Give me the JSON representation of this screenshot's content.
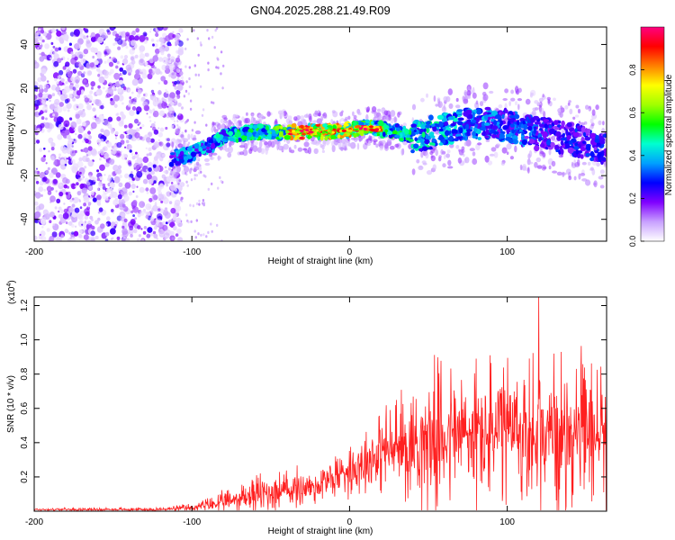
{
  "figure_title": "GN04.2025.288.21.49.R09",
  "chart_data": [
    {
      "type": "heatmap",
      "title": "GN04.2025.288.21.49.R09",
      "xlabel": "Height of straight line (km)",
      "ylabel": "Frequency (Hz)",
      "xlim": [
        -200,
        163
      ],
      "ylim": [
        -50,
        48
      ],
      "xticks": [
        -200,
        -100,
        0,
        100
      ],
      "xtick_labels": [
        "-200",
        "-100",
        "0",
        "100"
      ],
      "yticks": [
        -40,
        -20,
        0,
        20,
        40
      ],
      "ytick_labels": [
        "-40",
        "-20",
        "0",
        "20",
        "40"
      ],
      "colorbar": {
        "label": "Normalized spectral amplitude",
        "range": [
          0,
          1
        ],
        "ticks": [
          0.0,
          0.2,
          0.4,
          0.6,
          0.8
        ],
        "tick_labels": [
          "0.0",
          "0.2",
          "0.4",
          "0.6",
          "0.8"
        ],
        "colors": [
          "#ffffff",
          "#c8a0ff",
          "#8000ff",
          "#0000ff",
          "#00a0ff",
          "#00ffd0",
          "#00ff00",
          "#a0ff00",
          "#ffff00",
          "#ff8000",
          "#ff0000",
          "#ff0080"
        ]
      },
      "noise_region_x": [
        -200,
        -110
      ],
      "ridge": [
        {
          "x": -113,
          "f": -12,
          "a": 0.35
        },
        {
          "x": -100,
          "f": -10,
          "a": 0.45
        },
        {
          "x": -88,
          "f": -6,
          "a": 0.4
        },
        {
          "x": -80,
          "f": -2,
          "a": 0.5
        },
        {
          "x": -60,
          "f": 0,
          "a": 0.55
        },
        {
          "x": -45,
          "f": 0,
          "a": 0.6
        },
        {
          "x": -30,
          "f": 0,
          "a": 0.95
        },
        {
          "x": -15,
          "f": 0,
          "a": 0.8
        },
        {
          "x": 0,
          "f": 1,
          "a": 0.85
        },
        {
          "x": 10,
          "f": 2,
          "a": 0.7
        },
        {
          "x": 25,
          "f": 1,
          "a": 0.55
        },
        {
          "x": 40,
          "f": -2,
          "a": 0.5
        },
        {
          "x": 55,
          "f": 0,
          "a": 0.5
        },
        {
          "x": 70,
          "f": 3,
          "a": 0.45
        },
        {
          "x": 85,
          "f": 4,
          "a": 0.4
        },
        {
          "x": 100,
          "f": 3,
          "a": 0.35
        },
        {
          "x": 115,
          "f": 0,
          "a": 0.35
        },
        {
          "x": 130,
          "f": -2,
          "a": 0.3
        },
        {
          "x": 145,
          "f": -4,
          "a": 0.3
        },
        {
          "x": 163,
          "f": -8,
          "a": 0.3
        }
      ]
    },
    {
      "type": "line",
      "xlabel": "Height of straight line (km)",
      "ylabel": "SNR (10 * v/v)",
      "y_multiplier": "(x10",
      "y_multiplier_exp": "4",
      "y_multiplier_close": ")",
      "xlim": [
        -200,
        163
      ],
      "ylim": [
        0,
        1.25
      ],
      "xticks": [
        -200,
        -100,
        0,
        100
      ],
      "xtick_labels": [
        "-200",
        "-100",
        "0",
        "100"
      ],
      "yticks": [
        0.2,
        0.4,
        0.6,
        0.8,
        1.0,
        1.2
      ],
      "ytick_labels": [
        "0.2",
        "0.4",
        "0.6",
        "0.8",
        "1.0",
        "1.2"
      ],
      "series": [
        {
          "name": "SNR",
          "color": "#ff2020",
          "envelope_x": [
            -200,
            -120,
            -100,
            -80,
            -60,
            -40,
            -20,
            0,
            20,
            40,
            60,
            80,
            100,
            120,
            140,
            163
          ],
          "envelope_base": [
            0.01,
            0.01,
            0.02,
            0.05,
            0.1,
            0.12,
            0.15,
            0.25,
            0.35,
            0.4,
            0.45,
            0.45,
            0.45,
            0.45,
            0.45,
            0.45
          ],
          "envelope_amp": [
            0.01,
            0.015,
            0.03,
            0.08,
            0.15,
            0.15,
            0.15,
            0.2,
            0.3,
            0.45,
            0.55,
            0.55,
            0.55,
            0.6,
            0.55,
            0.55
          ],
          "peak": {
            "x": 120,
            "y": 1.25
          }
        }
      ]
    }
  ]
}
